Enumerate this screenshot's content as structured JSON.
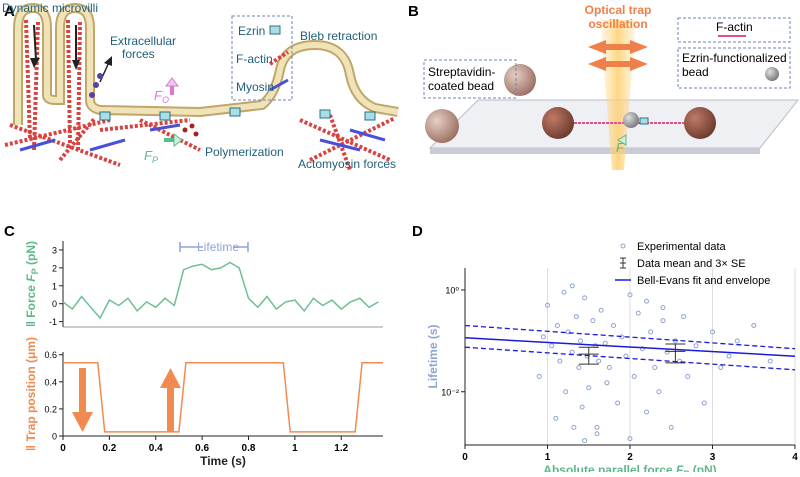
{
  "figure": {
    "panel_labels": [
      "A",
      "B",
      "C",
      "D"
    ],
    "panel_a": {
      "dynamic_microvilli": "Dynamic microvilli",
      "extracellular_forces": [
        "Extracellular",
        "forces"
      ],
      "legend": [
        "Ezrin",
        "F-actin",
        "Myosin"
      ],
      "bleb_retraction": "Bleb retraction",
      "f_o": {
        "symbol": "F",
        "subscript": "O"
      },
      "f_p": {
        "symbol": "F",
        "subscript": "P"
      },
      "polymerization": "Polymerization",
      "actomyosin_forces": "Actomyosin forces"
    },
    "panel_b": {
      "optical_trap": [
        "Optical trap",
        "oscillation"
      ],
      "f_actin": "F-actin",
      "streptavidin_bead": [
        "Streptavidin-",
        "coated bead"
      ],
      "ezrin_bead": [
        "Ezrin-functionalized",
        "bead"
      ],
      "force": "F"
    },
    "panel_c_annotation": "Lifetime"
  },
  "chart_data": [
    {
      "type": "line",
      "ylabel": {
        "marker": "‖ ",
        "text": "Force ",
        "symbol": "F",
        "subscript": "P",
        "unit": " (pN)"
      },
      "xlim": [
        0,
        1.38
      ],
      "ylim": [
        -1.3,
        3.5
      ],
      "yticks": [
        -1,
        0,
        1,
        2,
        3
      ],
      "x": [
        0,
        0.04,
        0.08,
        0.12,
        0.16,
        0.2,
        0.24,
        0.28,
        0.32,
        0.36,
        0.4,
        0.44,
        0.48,
        0.52,
        0.56,
        0.6,
        0.64,
        0.68,
        0.72,
        0.76,
        0.8,
        0.84,
        0.88,
        0.92,
        0.96,
        1,
        1.04,
        1.08,
        1.12,
        1.16,
        1.2,
        1.24,
        1.28,
        1.32,
        1.36
      ],
      "series": [
        {
          "color": "#6fbf94",
          "values": [
            0.1,
            -0.3,
            0.4,
            -0.2,
            -0.8,
            0.2,
            -0.1,
            0.3,
            -0.4,
            0.1,
            -0.2,
            0.3,
            -0.1,
            1.9,
            2.1,
            2.2,
            1.9,
            2.0,
            2.3,
            2.0,
            0.3,
            -0.2,
            0.4,
            -0.3,
            0.1,
            0.2,
            -0.4,
            0.3,
            -0.1,
            0.2,
            -0.3,
            0.1,
            0.3,
            -0.2,
            0.1
          ]
        }
      ]
    },
    {
      "type": "line",
      "ylabel": {
        "marker": "‖ ",
        "text": "Trap position (μm)"
      },
      "xlabel": "Time (s)",
      "xlim": [
        0,
        1.38
      ],
      "ylim": [
        0,
        0.62
      ],
      "xticks": [
        0,
        0.2,
        0.4,
        0.6,
        0.8,
        1,
        1.2
      ],
      "yticks": [
        0,
        0.2,
        0.4,
        0.6
      ],
      "x": [
        0,
        0.15,
        0.18,
        0.5,
        0.53,
        0.95,
        0.98,
        1.26,
        1.29,
        1.38
      ],
      "series": [
        {
          "color": "#f08a50",
          "values": [
            0.54,
            0.54,
            0.03,
            0.03,
            0.54,
            0.54,
            0.03,
            0.03,
            0.54,
            0.54
          ]
        }
      ]
    },
    {
      "type": "scatter",
      "log_y": true,
      "xlabel": {
        "text": "Absolute parallel force ",
        "symbol": "F",
        "subscript": "P",
        "unit": " (pN)"
      },
      "ylabel": "Lifetime (s)",
      "xlim": [
        0,
        4
      ],
      "ylim": [
        0.0009,
        2.7
      ],
      "xticks": [
        0,
        1,
        2,
        3,
        4
      ],
      "yticks": [
        {
          "value": 1,
          "label": "10⁰"
        },
        {
          "value": 0.01,
          "label": "10⁻²"
        }
      ],
      "grid": "x",
      "legend": "top-right",
      "series": [
        {
          "name": "Experimental data",
          "kind": "scatter",
          "color": "#8fa3d6",
          "x": [
            0.9,
            1.0,
            1.05,
            1.1,
            1.12,
            1.15,
            1.2,
            1.22,
            1.25,
            1.3,
            1.32,
            1.35,
            1.38,
            1.4,
            1.42,
            1.45,
            1.48,
            1.5,
            1.55,
            1.58,
            1.6,
            1.62,
            1.65,
            1.7,
            1.72,
            1.75,
            1.8,
            1.85,
            1.9,
            1.95,
            2.0,
            2.05,
            2.1,
            2.15,
            2.2,
            2.25,
            2.3,
            2.35,
            2.4,
            2.45,
            2.5,
            2.55,
            2.6,
            2.65,
            2.7,
            2.8,
            2.9,
            3.0,
            3.1,
            3.2,
            3.3,
            3.5,
            3.7,
            1.3,
            1.6,
            2.0,
            2.4,
            0.95,
            1.45,
            2.2
          ],
          "values": [
            0.02,
            0.5,
            0.08,
            0.003,
            0.2,
            0.04,
            0.9,
            0.01,
            0.15,
            0.06,
            0.002,
            0.3,
            0.03,
            0.1,
            0.005,
            0.7,
            0.05,
            0.012,
            0.25,
            0.08,
            0.002,
            0.04,
            0.4,
            0.09,
            0.015,
            0.03,
            0.2,
            0.006,
            0.12,
            0.05,
            0.8,
            0.02,
            0.35,
            0.07,
            0.004,
            0.15,
            0.03,
            0.01,
            0.25,
            0.06,
            0.002,
            0.1,
            0.04,
            0.3,
            0.02,
            0.08,
            0.006,
            0.15,
            0.03,
            0.05,
            0.1,
            0.2,
            0.04,
            1.2,
            0.0015,
            0.0012,
            0.45,
            0.12,
            0.0011,
            0.6
          ]
        },
        {
          "name": "Data mean and 3× SE",
          "kind": "errorbar",
          "color": "#333333",
          "x": [
            1.5,
            2.55
          ],
          "values": [
            0.055,
            0.062
          ],
          "errors": [
            0.02,
            0.025
          ]
        },
        {
          "name": "Bell-Evans fit and envelope",
          "kind": "line",
          "color": "#1a1adb",
          "x": [
            0,
            4
          ],
          "values": [
            0.115,
            0.05
          ],
          "envelope": {
            "upper": [
              0.2,
              0.07
            ],
            "lower": [
              0.075,
              0.027
            ]
          }
        }
      ]
    }
  ]
}
